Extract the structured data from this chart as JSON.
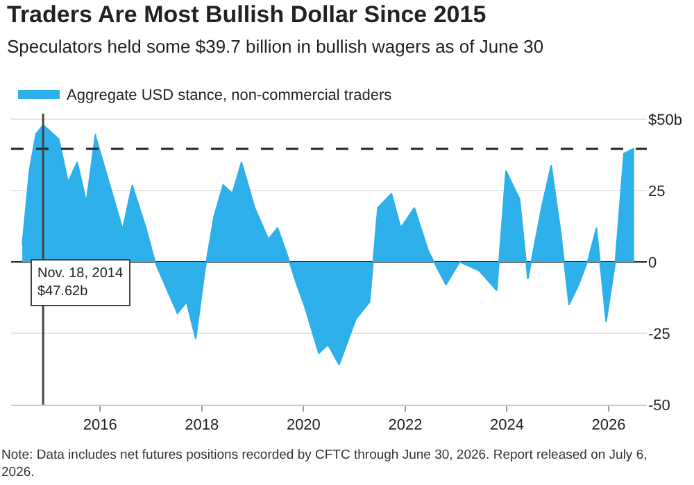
{
  "chart_data": {
    "type": "area",
    "title": "Traders Are Most Bullish Dollar Since 2015",
    "subtitle": "Speculators held some $39.7 billion in bullish wagers as of June 30",
    "x": [
      2014.47,
      2014.61,
      2014.74,
      2014.88,
      2015.01,
      2015.19,
      2015.37,
      2015.55,
      2015.73,
      2015.91,
      2016.05,
      2016.18,
      2016.45,
      2016.63,
      2016.9,
      2017.08,
      2017.25,
      2017.52,
      2017.7,
      2017.88,
      2018.06,
      2018.24,
      2018.42,
      2018.6,
      2018.78,
      2019.04,
      2019.31,
      2019.49,
      2019.67,
      2019.85,
      2020.03,
      2020.3,
      2020.48,
      2020.7,
      2021.03,
      2021.3,
      2021.46,
      2021.73,
      2021.91,
      2022.18,
      2022.45,
      2022.8,
      2023.07,
      2023.45,
      2023.8,
      2023.98,
      2024.25,
      2024.41,
      2024.52,
      2024.68,
      2024.87,
      2025.06,
      2025.22,
      2025.41,
      2025.6,
      2025.76,
      2025.95,
      2026.13,
      2026.3,
      2026.48,
      2026.5
    ],
    "series": [
      {
        "name": "Aggregate USD stance, non-commercial traders",
        "color": "#2eb0ea",
        "values": [
          6,
          32,
          45,
          48,
          46,
          43,
          28,
          35,
          21,
          45,
          null,
          null,
          12,
          27,
          12,
          0,
          -7,
          -18,
          -14,
          -27,
          -3,
          16,
          27,
          24,
          35,
          19,
          8,
          12,
          3,
          -7,
          -16,
          -32,
          -29,
          -36,
          -20,
          -14,
          19,
          24,
          12,
          19,
          4,
          -8,
          0,
          -3,
          -10,
          32,
          22,
          -6,
          4,
          19,
          34,
          10,
          -15,
          -8,
          1,
          12,
          -21,
          0,
          38,
          39.7,
          39.7
        ]
      }
    ],
    "xlim": [
      2014.25,
      2026.75
    ],
    "xticks": [
      2016,
      2018,
      2020,
      2022,
      2024,
      2026
    ],
    "ylim": [
      -50,
      52
    ],
    "yticks": [
      {
        "value": 50,
        "label": "$50b"
      },
      25,
      0,
      -25,
      -50
    ],
    "grid": "y",
    "legend": "top left",
    "ref_lines": [
      {
        "axis": "y",
        "value": 39.7,
        "color": "#222222",
        "line_style": "dashed"
      },
      {
        "axis": "x",
        "value": 2014.88,
        "color": "#444444",
        "line_style": "solid"
      }
    ],
    "annotations": [
      "Nov. 18, 2014\n$47.62b",
      "Note: Data includes net futures positions recorded by CFTC through June 30, 2026. Report released on July 6,\n2026."
    ]
  }
}
